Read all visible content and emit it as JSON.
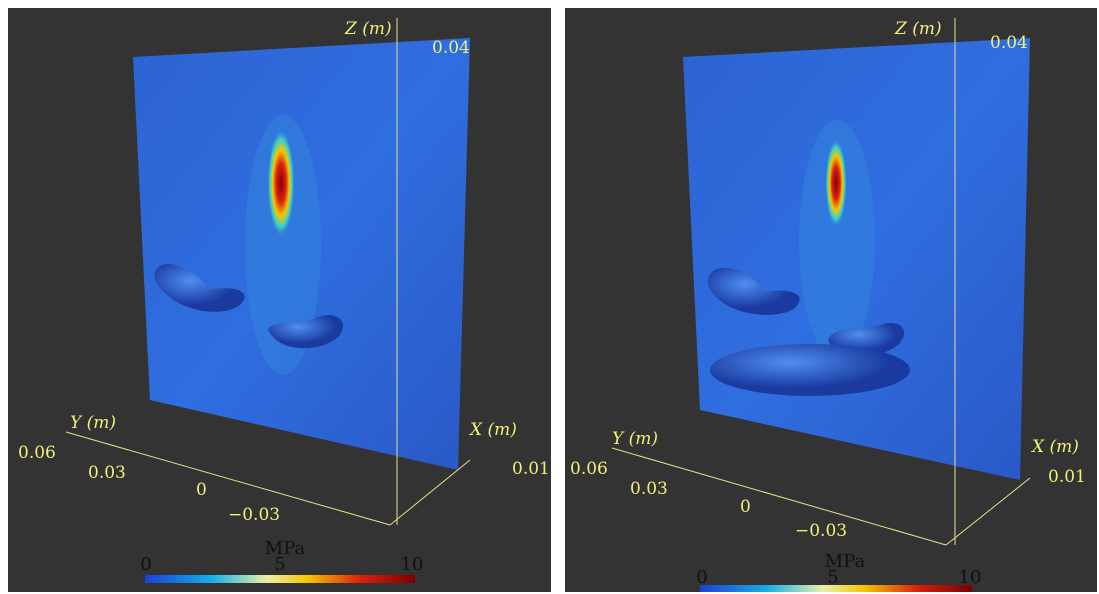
{
  "panels": [
    {
      "axes": {
        "z": {
          "label": "Z (m)",
          "ticks": [
            "0.04"
          ]
        },
        "y": {
          "label": "Y (m)",
          "ticks": [
            "0.06",
            "0.03",
            "0",
            "−0.03"
          ]
        },
        "x": {
          "label": "X (m)",
          "ticks": [
            "0.01"
          ]
        }
      },
      "colorbar": {
        "label": "MPa",
        "ticks": [
          "0",
          "5",
          "10"
        ]
      }
    },
    {
      "axes": {
        "z": {
          "label": "Z (m)",
          "ticks": [
            "0.04"
          ]
        },
        "y": {
          "label": "Y (m)",
          "ticks": [
            "0.06",
            "0.03",
            "0",
            "−0.03"
          ]
        },
        "x": {
          "label": "X (m)",
          "ticks": [
            "0.01"
          ]
        }
      },
      "colorbar": {
        "label": "MPa",
        "ticks": [
          "0",
          "5",
          "10"
        ]
      }
    }
  ]
}
